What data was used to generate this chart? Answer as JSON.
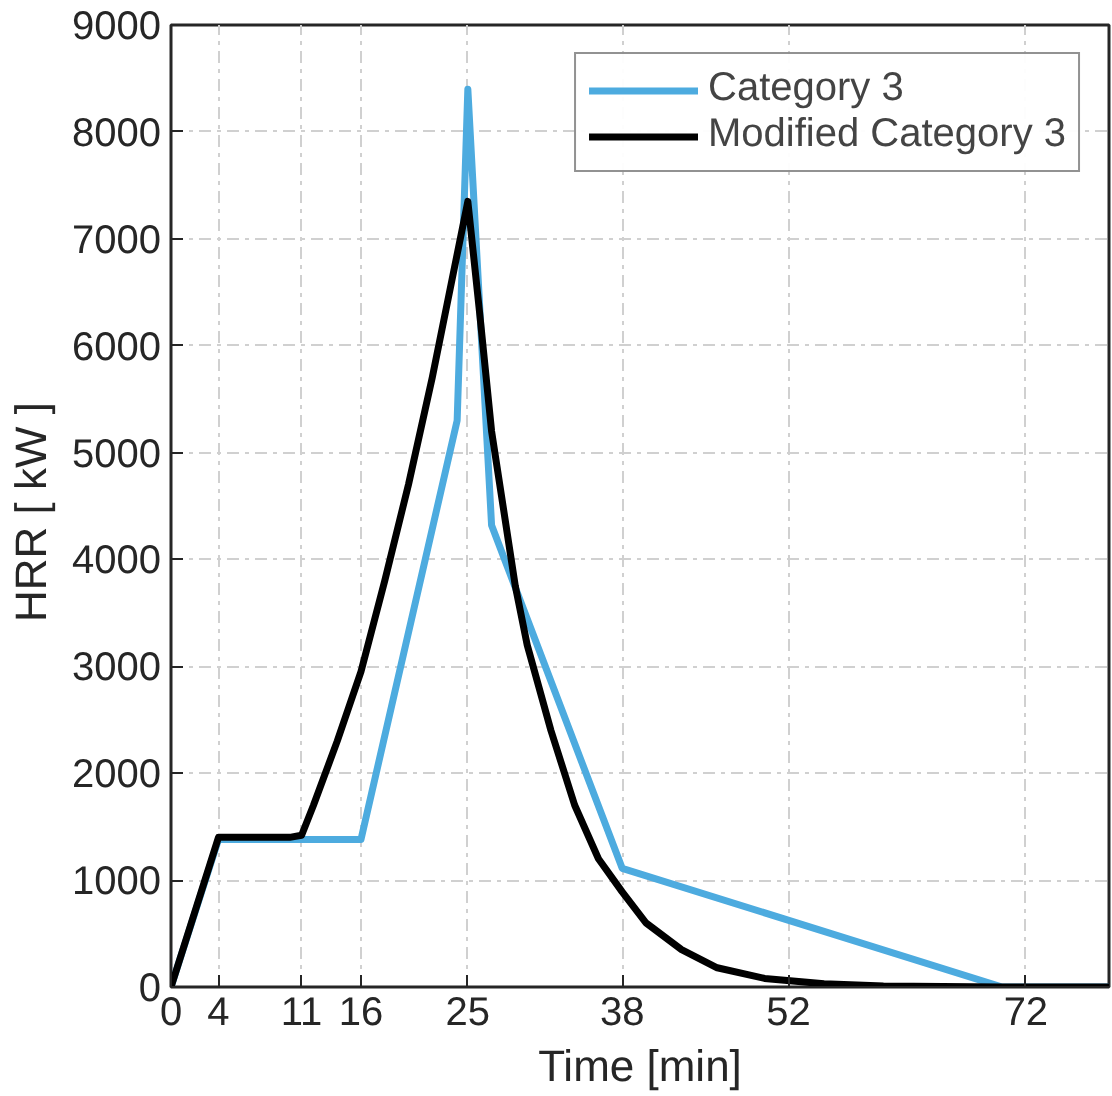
{
  "chart_data": {
    "type": "line",
    "xlabel": "Time [min]",
    "ylabel": "HRR  [ kW ]",
    "xlim": [
      0,
      79
    ],
    "ylim": [
      0,
      9000
    ],
    "xticks": [
      0,
      4,
      11,
      16,
      25,
      38,
      52,
      72
    ],
    "yticks": [
      0,
      1000,
      2000,
      3000,
      4000,
      5000,
      6000,
      7000,
      8000,
      9000
    ],
    "grid": true,
    "legend": "top right",
    "line_style": "solid",
    "series": [
      {
        "name": "Category 3",
        "color": "#4dabdf",
        "x": [
          0,
          4,
          16,
          24.1,
          25,
          27,
          38,
          70,
          79
        ],
        "values": [
          0,
          1380,
          1380,
          5300,
          8400,
          4320,
          1110,
          0,
          0
        ]
      },
      {
        "name": "Modified Category 3",
        "color": "#000000",
        "x": [
          0,
          4,
          10,
          11,
          12,
          14,
          16,
          18,
          20,
          22,
          24,
          25,
          26,
          27,
          29,
          30,
          32,
          34,
          36,
          38,
          40,
          43,
          46,
          50,
          55,
          60,
          70,
          79
        ],
        "values": [
          0,
          1400,
          1400,
          1420,
          1700,
          2300,
          2950,
          3800,
          4700,
          5700,
          6800,
          7350,
          6300,
          5200,
          3750,
          3200,
          2400,
          1700,
          1200,
          890,
          600,
          350,
          180,
          80,
          30,
          10,
          0,
          0
        ]
      }
    ]
  }
}
